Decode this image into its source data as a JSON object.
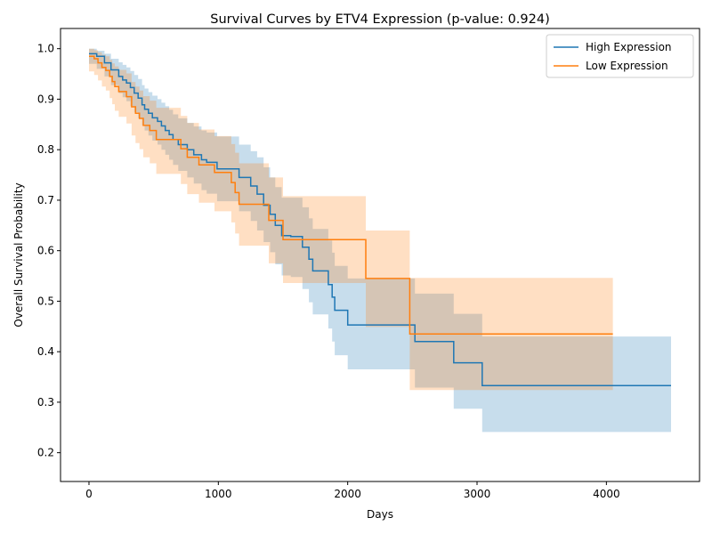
{
  "chart_data": {
    "type": "line",
    "title": "Survival Curves by ETV4 Expression (p-value: 0.924)",
    "xlabel": "Days",
    "ylabel": "Overall Survival Probability",
    "xlim": [
      -220,
      4720
    ],
    "ylim": [
      0.143,
      1.04
    ],
    "xticks": [
      0,
      1000,
      2000,
      3000,
      4000
    ],
    "yticks": [
      0.2,
      0.3,
      0.4,
      0.5,
      0.6,
      0.7,
      0.8,
      0.9,
      1.0
    ],
    "grid": false,
    "legend_position": "top-right",
    "series": [
      {
        "name": "High Expression",
        "color": "#1f77b4",
        "ci_color": "#1f77b4",
        "x": [
          0,
          60,
          120,
          170,
          230,
          260,
          290,
          320,
          350,
          380,
          410,
          430,
          460,
          490,
          530,
          560,
          590,
          620,
          650,
          690,
          760,
          810,
          870,
          910,
          990,
          1160,
          1250,
          1300,
          1350,
          1400,
          1440,
          1490,
          1560,
          1650,
          1700,
          1730,
          1780,
          1850,
          1880,
          1900,
          2000,
          2520,
          2820,
          3040,
          4500
        ],
        "y": [
          0.99,
          0.985,
          0.972,
          0.958,
          0.945,
          0.938,
          0.932,
          0.923,
          0.912,
          0.902,
          0.889,
          0.88,
          0.872,
          0.863,
          0.856,
          0.847,
          0.838,
          0.83,
          0.82,
          0.81,
          0.8,
          0.79,
          0.78,
          0.775,
          0.762,
          0.745,
          0.728,
          0.712,
          0.69,
          0.672,
          0.65,
          0.63,
          0.628,
          0.607,
          0.583,
          0.56,
          0.56,
          0.533,
          0.508,
          0.482,
          0.453,
          0.42,
          0.378,
          0.333,
          0.333
        ],
        "ci_lower": [
          0.97,
          0.96,
          0.945,
          0.928,
          0.912,
          0.904,
          0.896,
          0.886,
          0.874,
          0.862,
          0.848,
          0.838,
          0.828,
          0.818,
          0.81,
          0.8,
          0.79,
          0.78,
          0.77,
          0.758,
          0.745,
          0.733,
          0.72,
          0.713,
          0.698,
          0.678,
          0.659,
          0.64,
          0.617,
          0.597,
          0.573,
          0.551,
          0.548,
          0.524,
          0.498,
          0.474,
          0.474,
          0.446,
          0.42,
          0.393,
          0.365,
          0.329,
          0.287,
          0.241,
          0.241
        ],
        "ci_upper": [
          1.0,
          0.996,
          0.99,
          0.98,
          0.973,
          0.968,
          0.963,
          0.956,
          0.948,
          0.94,
          0.928,
          0.921,
          0.914,
          0.907,
          0.9,
          0.893,
          0.886,
          0.879,
          0.87,
          0.862,
          0.853,
          0.846,
          0.838,
          0.834,
          0.826,
          0.81,
          0.797,
          0.785,
          0.765,
          0.745,
          0.726,
          0.705,
          0.705,
          0.686,
          0.664,
          0.643,
          0.643,
          0.62,
          0.596,
          0.57,
          0.545,
          0.515,
          0.475,
          0.43,
          0.43
        ]
      },
      {
        "name": "Low Expression",
        "color": "#ff7f0e",
        "ci_color": "#ff7f0e",
        "x": [
          0,
          40,
          70,
          100,
          130,
          160,
          180,
          200,
          230,
          290,
          330,
          360,
          390,
          420,
          470,
          520,
          710,
          760,
          850,
          970,
          1100,
          1130,
          1160,
          1390,
          1500,
          2140,
          2480,
          4050
        ],
        "y": [
          0.985,
          0.98,
          0.972,
          0.963,
          0.957,
          0.945,
          0.935,
          0.925,
          0.915,
          0.905,
          0.885,
          0.872,
          0.862,
          0.848,
          0.838,
          0.82,
          0.802,
          0.785,
          0.77,
          0.755,
          0.735,
          0.715,
          0.692,
          0.66,
          0.622,
          0.545,
          0.435,
          0.435
        ],
        "ci_lower": [
          0.955,
          0.948,
          0.937,
          0.925,
          0.917,
          0.902,
          0.89,
          0.877,
          0.865,
          0.852,
          0.828,
          0.813,
          0.801,
          0.785,
          0.773,
          0.752,
          0.732,
          0.712,
          0.695,
          0.678,
          0.656,
          0.634,
          0.61,
          0.575,
          0.536,
          0.449,
          0.324,
          0.324
        ],
        "ci_upper": [
          1.0,
          0.997,
          0.993,
          0.988,
          0.985,
          0.978,
          0.971,
          0.965,
          0.958,
          0.951,
          0.934,
          0.925,
          0.917,
          0.906,
          0.897,
          0.883,
          0.867,
          0.853,
          0.84,
          0.827,
          0.811,
          0.794,
          0.773,
          0.745,
          0.708,
          0.64,
          0.546,
          0.546
        ]
      }
    ]
  }
}
